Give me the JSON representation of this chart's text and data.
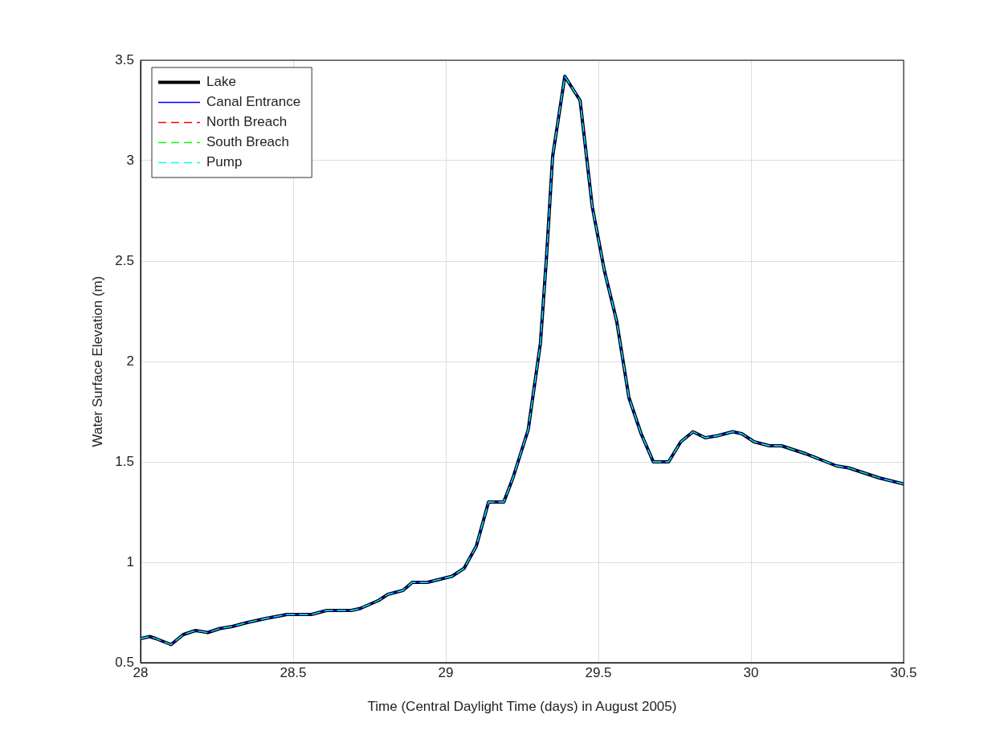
{
  "chart_data": {
    "type": "line",
    "xlabel": "Time (Central Daylight Time (days) in August 2005)",
    "ylabel": "Water Surface Elevation (m)",
    "x": [
      28.0,
      28.03,
      28.05,
      28.1,
      28.14,
      28.18,
      28.22,
      28.26,
      28.3,
      28.35,
      28.41,
      28.48,
      28.56,
      28.61,
      28.69,
      28.72,
      28.78,
      28.81,
      28.86,
      28.89,
      28.94,
      29.02,
      29.06,
      29.1,
      29.14,
      29.19,
      29.22,
      29.27,
      29.31,
      29.33,
      29.35,
      29.39,
      29.44,
      29.48,
      29.52,
      29.56,
      29.6,
      29.64,
      29.68,
      29.73,
      29.77,
      29.81,
      29.85,
      29.89,
      29.94,
      29.97,
      30.01,
      30.06,
      30.1,
      30.18,
      30.23,
      30.28,
      30.32,
      30.42,
      30.5
    ],
    "series": [
      {
        "name": "Lake",
        "color": "#000000",
        "line_style": "solid",
        "values": [
          0.62,
          0.63,
          0.62,
          0.59,
          0.64,
          0.66,
          0.65,
          0.67,
          0.68,
          0.7,
          0.72,
          0.74,
          0.74,
          0.76,
          0.76,
          0.77,
          0.81,
          0.84,
          0.86,
          0.9,
          0.9,
          0.93,
          0.97,
          1.08,
          1.3,
          1.3,
          1.42,
          1.66,
          2.09,
          2.52,
          3.02,
          3.42,
          3.3,
          2.77,
          2.45,
          2.2,
          1.82,
          1.64,
          1.5,
          1.5,
          1.6,
          1.65,
          1.62,
          1.63,
          1.65,
          1.64,
          1.6,
          1.58,
          1.58,
          1.54,
          1.51,
          1.48,
          1.47,
          1.42,
          1.39
        ]
      },
      {
        "name": "Canal Entrance",
        "color": "#0000ff",
        "line_style": "solid",
        "values": [
          0.62,
          0.63,
          0.62,
          0.59,
          0.64,
          0.66,
          0.65,
          0.67,
          0.68,
          0.7,
          0.72,
          0.74,
          0.74,
          0.76,
          0.76,
          0.77,
          0.81,
          0.84,
          0.86,
          0.9,
          0.9,
          0.93,
          0.97,
          1.08,
          1.3,
          1.3,
          1.42,
          1.66,
          2.09,
          2.52,
          3.02,
          3.42,
          3.3,
          2.77,
          2.45,
          2.2,
          1.82,
          1.64,
          1.5,
          1.5,
          1.6,
          1.65,
          1.62,
          1.63,
          1.65,
          1.64,
          1.6,
          1.58,
          1.58,
          1.54,
          1.51,
          1.48,
          1.47,
          1.42,
          1.39
        ]
      },
      {
        "name": "North Breach",
        "color": "#ff0000",
        "line_style": "dashed",
        "values": [
          null,
          null,
          null,
          null,
          null,
          null,
          null,
          null,
          null,
          null,
          null,
          null,
          null,
          null,
          null,
          null,
          null,
          null,
          null,
          null,
          null,
          null,
          null,
          null,
          null,
          null,
          null,
          null,
          null,
          null,
          null,
          null,
          null,
          null,
          null,
          null,
          null,
          null,
          null,
          null,
          null,
          null,
          null,
          null,
          null,
          null,
          null,
          null,
          null,
          null,
          null,
          null,
          null,
          null,
          null
        ]
      },
      {
        "name": "South Breach",
        "color": "#00ff00",
        "line_style": "dashed",
        "values": [
          null,
          null,
          null,
          null,
          null,
          null,
          null,
          null,
          null,
          null,
          null,
          null,
          null,
          null,
          null,
          null,
          null,
          null,
          null,
          null,
          null,
          null,
          null,
          null,
          null,
          null,
          null,
          null,
          null,
          null,
          null,
          null,
          null,
          null,
          null,
          null,
          null,
          null,
          null,
          null,
          null,
          null,
          null,
          null,
          null,
          null,
          null,
          null,
          null,
          null,
          null,
          null,
          null,
          null,
          null
        ]
      },
      {
        "name": "Pump",
        "color": "#00ffff",
        "line_style": "dashed",
        "values": [
          0.62,
          0.63,
          0.62,
          0.59,
          0.64,
          0.66,
          0.65,
          0.67,
          0.68,
          0.7,
          0.72,
          0.74,
          0.74,
          0.76,
          0.76,
          0.77,
          0.81,
          0.84,
          0.86,
          0.9,
          0.9,
          0.93,
          0.97,
          1.08,
          1.3,
          1.3,
          1.42,
          1.66,
          2.09,
          2.52,
          3.02,
          3.42,
          3.3,
          2.77,
          2.45,
          2.2,
          1.82,
          1.64,
          1.5,
          1.5,
          1.6,
          1.65,
          1.62,
          1.63,
          1.65,
          1.64,
          1.6,
          1.58,
          1.58,
          1.54,
          1.51,
          1.48,
          1.47,
          1.42,
          1.39
        ]
      }
    ],
    "xlim": [
      28,
      30.5
    ],
    "xticks": [
      28,
      28.5,
      29,
      29.5,
      30,
      30.5
    ],
    "ylim": [
      0.5,
      3.5
    ],
    "yticks": [
      0.5,
      1,
      1.5,
      2,
      2.5,
      3,
      3.5
    ],
    "grid": true,
    "legend": "top left",
    "marker": "none"
  }
}
